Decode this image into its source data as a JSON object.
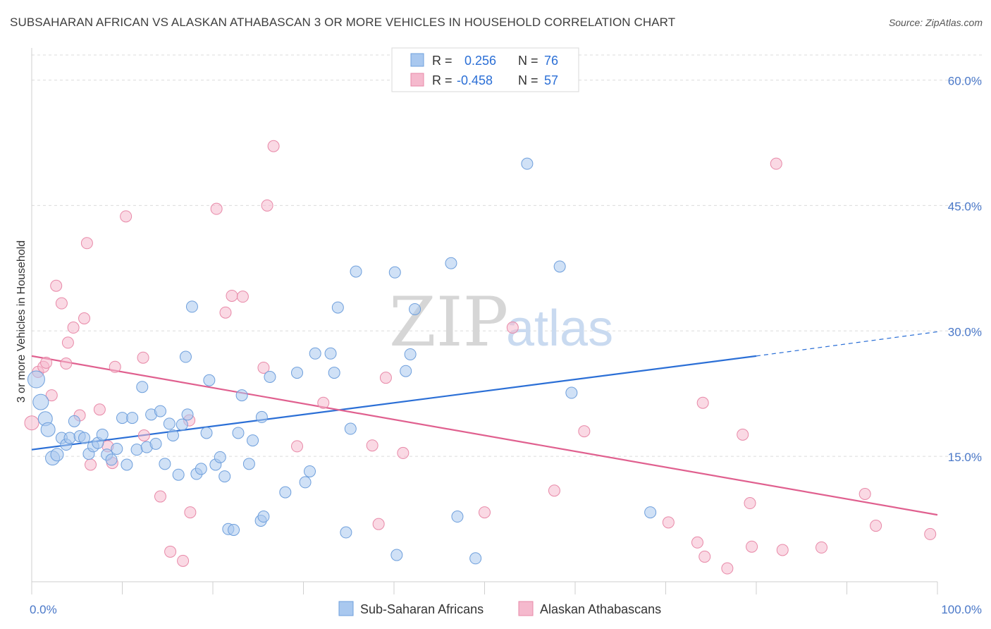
{
  "title": "SUBSAHARAN AFRICAN VS ALASKAN ATHABASCAN 3 OR MORE VEHICLES IN HOUSEHOLD CORRELATION CHART",
  "source": "Source: ZipAtlas.com",
  "watermark": {
    "zip": "ZIP",
    "atlas": "atlas"
  },
  "legend": {
    "rows": [
      {
        "r_label": "R =",
        "r_value": "0.256",
        "n_label": "N =",
        "n_value": "76"
      },
      {
        "r_label": "R =",
        "r_value": "-0.458",
        "n_label": "N =",
        "n_value": "57"
      }
    ]
  },
  "chart_data": {
    "type": "scatter",
    "title": "SUBSAHARAN AFRICAN VS ALASKAN ATHABASCAN 3 OR MORE VEHICLES IN HOUSEHOLD CORRELATION CHART",
    "xlabel": "",
    "ylabel": "3 or more Vehicles in Household",
    "xlim": [
      0,
      100
    ],
    "ylim": [
      0,
      63
    ],
    "x_tick_labels": [
      "0.0%",
      "100.0%"
    ],
    "y_ticks": [
      15,
      30,
      45,
      60
    ],
    "y_tick_labels": [
      "15.0%",
      "30.0%",
      "45.0%",
      "60.0%"
    ],
    "grid": true,
    "legend_position": "top-center",
    "series": [
      {
        "name": "Sub-Saharan Africans",
        "color": "#a9c8ef",
        "stroke": "#6e9fdc",
        "line_color": "#2b6fd6",
        "trend": {
          "x0": 0,
          "y0": 15.8,
          "x1": 80,
          "y1": 27.0,
          "dash_to_x": 100,
          "dash_to_y": 29.9
        },
        "points": [
          [
            0.5,
            24.2
          ],
          [
            1.0,
            21.5
          ],
          [
            1.5,
            19.5
          ],
          [
            1.8,
            18.2
          ],
          [
            2.3,
            14.8
          ],
          [
            2.8,
            15.2
          ],
          [
            3.3,
            17.2
          ],
          [
            3.8,
            16.4
          ],
          [
            4.2,
            17.2
          ],
          [
            4.7,
            19.2
          ],
          [
            5.3,
            17.4
          ],
          [
            5.8,
            17.2
          ],
          [
            6.3,
            15.3
          ],
          [
            6.8,
            16.2
          ],
          [
            7.3,
            16.6
          ],
          [
            7.8,
            17.6
          ],
          [
            8.3,
            15.2
          ],
          [
            8.8,
            14.6
          ],
          [
            9.4,
            15.9
          ],
          [
            10.0,
            19.6
          ],
          [
            10.5,
            14.0
          ],
          [
            11.1,
            19.6
          ],
          [
            11.6,
            15.8
          ],
          [
            12.2,
            23.3
          ],
          [
            12.7,
            16.1
          ],
          [
            13.2,
            20.0
          ],
          [
            13.7,
            16.5
          ],
          [
            14.2,
            20.4
          ],
          [
            14.7,
            14.1
          ],
          [
            15.2,
            18.9
          ],
          [
            15.6,
            17.5
          ],
          [
            16.2,
            12.8
          ],
          [
            16.6,
            18.8
          ],
          [
            17.2,
            20.0
          ],
          [
            17.7,
            32.9
          ],
          [
            17.0,
            26.9
          ],
          [
            18.2,
            12.9
          ],
          [
            18.7,
            13.5
          ],
          [
            19.3,
            17.8
          ],
          [
            19.6,
            24.1
          ],
          [
            20.3,
            14.0
          ],
          [
            20.8,
            14.9
          ],
          [
            21.3,
            12.6
          ],
          [
            21.7,
            6.3
          ],
          [
            22.3,
            6.2
          ],
          [
            22.8,
            17.8
          ],
          [
            23.2,
            22.3
          ],
          [
            24.0,
            14.1
          ],
          [
            24.4,
            16.9
          ],
          [
            25.3,
            7.3
          ],
          [
            25.6,
            7.8
          ],
          [
            25.4,
            19.7
          ],
          [
            26.3,
            24.5
          ],
          [
            28.0,
            10.7
          ],
          [
            29.3,
            25.0
          ],
          [
            30.2,
            11.9
          ],
          [
            30.7,
            13.2
          ],
          [
            31.3,
            27.3
          ],
          [
            33.0,
            27.3
          ],
          [
            33.4,
            25.0
          ],
          [
            33.8,
            32.8
          ],
          [
            34.7,
            5.9
          ],
          [
            35.2,
            18.3
          ],
          [
            35.8,
            37.1
          ],
          [
            40.1,
            37.0
          ],
          [
            40.3,
            3.2
          ],
          [
            41.3,
            25.2
          ],
          [
            41.8,
            27.2
          ],
          [
            42.3,
            32.6
          ],
          [
            46.3,
            38.1
          ],
          [
            47.0,
            7.8
          ],
          [
            49.0,
            2.8
          ],
          [
            54.7,
            50.0
          ],
          [
            58.3,
            37.7
          ],
          [
            59.6,
            22.6
          ],
          [
            68.3,
            8.3
          ]
        ],
        "point_sizes": [
          12,
          11,
          10,
          10,
          10,
          9,
          8,
          8,
          8,
          8,
          8,
          8,
          8,
          8,
          8,
          8,
          8,
          8,
          8,
          8,
          8,
          8,
          8,
          8,
          8,
          8,
          8,
          8,
          8,
          8,
          8,
          8,
          8,
          8,
          8,
          8,
          8,
          8,
          8,
          8,
          8,
          8,
          8,
          8,
          8,
          8,
          8,
          8,
          8,
          8,
          8,
          8,
          8,
          8,
          8,
          8,
          8,
          8,
          8,
          8,
          8,
          8,
          8,
          8,
          8,
          8,
          8,
          8,
          8,
          8,
          8,
          8,
          8,
          8,
          8,
          8
        ]
      },
      {
        "name": "Alaskan Athabascans",
        "color": "#f5b9cd",
        "stroke": "#e889a8",
        "line_color": "#e0608f",
        "trend": {
          "x0": 0,
          "y0": 27.0,
          "x1": 100,
          "y1": 8.0
        },
        "points": [
          [
            0.0,
            19.0
          ],
          [
            0.7,
            25.1
          ],
          [
            1.3,
            25.7
          ],
          [
            1.6,
            26.2
          ],
          [
            2.2,
            22.3
          ],
          [
            2.7,
            35.4
          ],
          [
            3.3,
            33.3
          ],
          [
            3.8,
            26.1
          ],
          [
            4.0,
            28.6
          ],
          [
            4.6,
            30.4
          ],
          [
            5.3,
            19.9
          ],
          [
            5.8,
            31.5
          ],
          [
            6.1,
            40.5
          ],
          [
            6.5,
            14.0
          ],
          [
            7.5,
            20.6
          ],
          [
            8.4,
            16.2
          ],
          [
            8.9,
            14.2
          ],
          [
            9.2,
            25.7
          ],
          [
            10.4,
            43.7
          ],
          [
            12.3,
            26.8
          ],
          [
            12.4,
            17.5
          ],
          [
            14.2,
            10.2
          ],
          [
            15.3,
            3.6
          ],
          [
            16.7,
            2.5
          ],
          [
            17.4,
            19.3
          ],
          [
            17.5,
            8.3
          ],
          [
            20.4,
            44.6
          ],
          [
            21.4,
            32.2
          ],
          [
            22.1,
            34.2
          ],
          [
            23.3,
            34.1
          ],
          [
            25.6,
            25.6
          ],
          [
            26.0,
            45.0
          ],
          [
            26.7,
            52.1
          ],
          [
            29.3,
            16.2
          ],
          [
            32.2,
            21.4
          ],
          [
            37.6,
            16.3
          ],
          [
            38.3,
            6.9
          ],
          [
            39.1,
            24.4
          ],
          [
            41.0,
            15.4
          ],
          [
            50.0,
            8.3
          ],
          [
            53.1,
            30.4
          ],
          [
            57.7,
            10.9
          ],
          [
            61.0,
            18.0
          ],
          [
            70.3,
            7.1
          ],
          [
            73.5,
            4.7
          ],
          [
            74.1,
            21.4
          ],
          [
            74.3,
            3.0
          ],
          [
            76.8,
            1.6
          ],
          [
            78.5,
            17.6
          ],
          [
            79.3,
            9.4
          ],
          [
            79.5,
            4.2
          ],
          [
            82.2,
            50.0
          ],
          [
            82.9,
            3.8
          ],
          [
            87.2,
            4.1
          ],
          [
            92.0,
            10.5
          ],
          [
            93.2,
            6.7
          ],
          [
            99.2,
            5.7
          ]
        ],
        "point_sizes": [
          10,
          8,
          8,
          8,
          8,
          8,
          8,
          8,
          8,
          8,
          8,
          8,
          8,
          8,
          8,
          8,
          8,
          8,
          8,
          8,
          8,
          8,
          8,
          8,
          8,
          8,
          8,
          8,
          8,
          8,
          8,
          8,
          8,
          8,
          8,
          8,
          8,
          8,
          8,
          8,
          8,
          8,
          8,
          8,
          8,
          8,
          8,
          8,
          8,
          8,
          8,
          8,
          8,
          8,
          8,
          8,
          8
        ]
      }
    ]
  },
  "bottom_legend": [
    "Sub-Saharan Africans",
    "Alaskan Athabascans"
  ]
}
